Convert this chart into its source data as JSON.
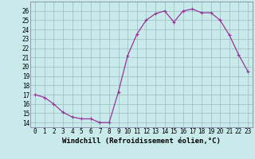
{
  "x": [
    0,
    1,
    2,
    3,
    4,
    5,
    6,
    7,
    8,
    9,
    10,
    11,
    12,
    13,
    14,
    15,
    16,
    17,
    18,
    19,
    20,
    21,
    22,
    23
  ],
  "y": [
    17.0,
    16.7,
    16.0,
    15.1,
    14.6,
    14.4,
    14.4,
    14.0,
    14.0,
    17.3,
    21.2,
    23.5,
    25.0,
    25.7,
    26.0,
    24.8,
    26.0,
    26.2,
    25.8,
    25.8,
    25.0,
    23.4,
    21.3,
    19.5
  ],
  "line_color": "#993399",
  "marker": "+",
  "marker_size": 3,
  "linewidth": 0.9,
  "xlabel": "Windchill (Refroidissement éolien,°C)",
  "xlabel_fontsize": 6.5,
  "ylabel_ticks": [
    14,
    15,
    16,
    17,
    18,
    19,
    20,
    21,
    22,
    23,
    24,
    25,
    26
  ],
  "xlim": [
    -0.5,
    23.5
  ],
  "ylim": [
    13.5,
    27.0
  ],
  "background_color": "#c8eaea",
  "grid_color": "#99bbbb",
  "tick_label_fontsize": 5.5
}
